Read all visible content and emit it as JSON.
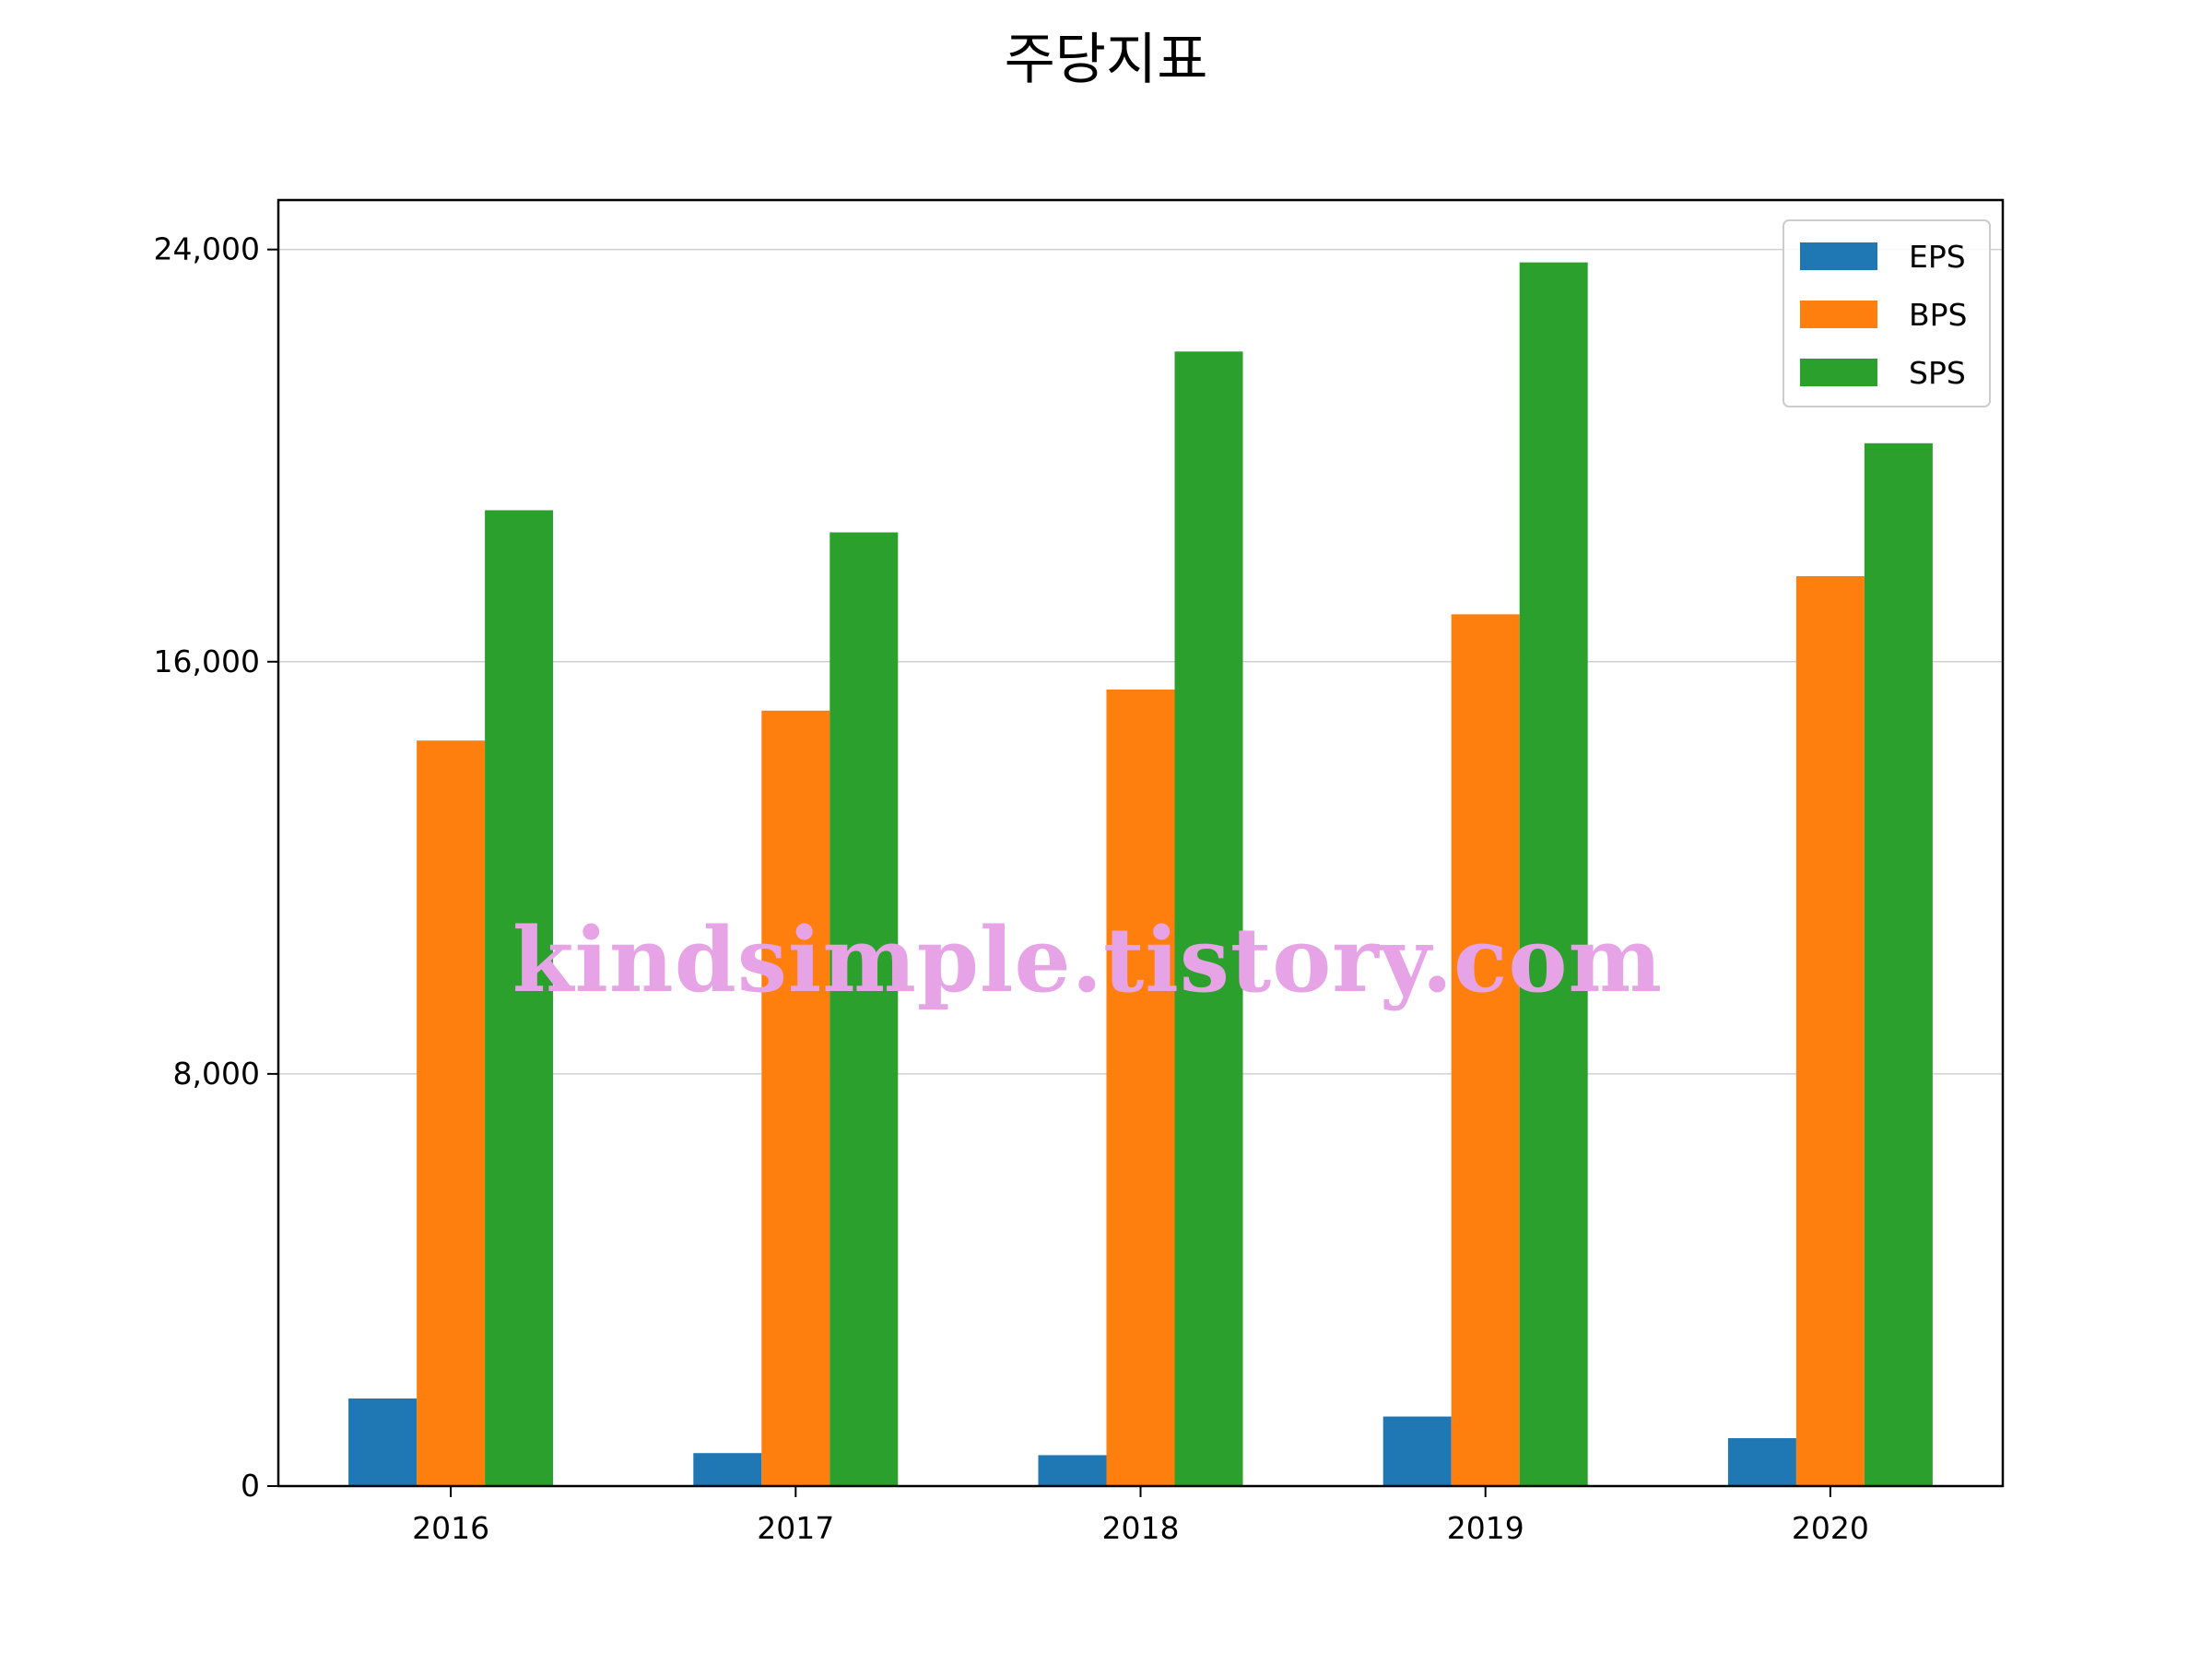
{
  "chart_data": {
    "type": "bar",
    "title": "주당지표",
    "xlabel": "",
    "ylabel": "",
    "categories": [
      "2016",
      "2017",
      "2018",
      "2019",
      "2020"
    ],
    "series": [
      {
        "name": "EPS",
        "color": "#1f77b4",
        "values": [
          1700,
          640,
          600,
          1350,
          930
        ]
      },
      {
        "name": "BPS",
        "color": "#ff7f0e",
        "values": [
          14470,
          15050,
          15460,
          16920,
          17660
        ]
      },
      {
        "name": "SPS",
        "color": "#2ca02c",
        "values": [
          18940,
          18510,
          22020,
          23750,
          20240
        ]
      }
    ],
    "ylim": [
      0,
      24960
    ],
    "yticks": [
      0,
      8000,
      16000,
      24000
    ],
    "ytick_labels": [
      "0",
      "8,000",
      "16,000",
      "24,000"
    ],
    "grid": "y",
    "legend_position": "top-right"
  },
  "watermark": "kindsimple.tistory.com"
}
